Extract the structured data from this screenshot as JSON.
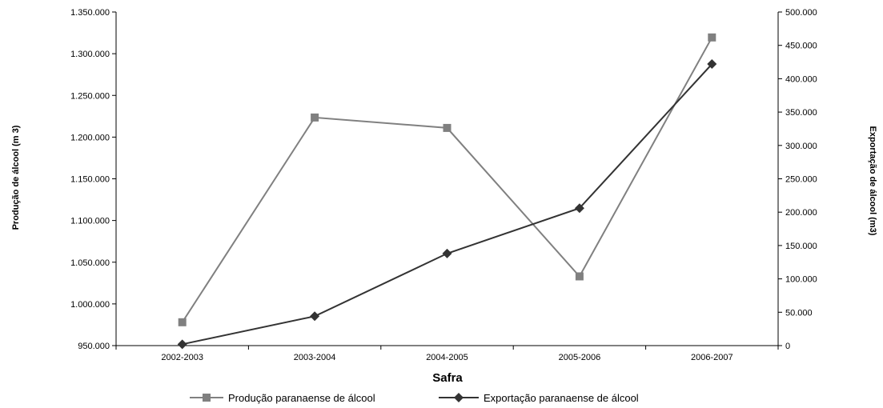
{
  "chart_data": {
    "type": "line",
    "categories": [
      "2002-2003",
      "2003-2004",
      "2004-2005",
      "2005-2006",
      "2006-2007"
    ],
    "xlabel": "Safra",
    "ylabel_left": "Produção de álcool (m 3)",
    "ylabel_right": "Exportação de álcool (m3)",
    "y_left": {
      "min": 950000,
      "max": 1350000,
      "step": 50000,
      "ticks": [
        "950.000",
        "1.000.000",
        "1.050.000",
        "1.100.000",
        "1.150.000",
        "1.200.000",
        "1.250.000",
        "1.300.000",
        "1.350.000"
      ]
    },
    "y_right": {
      "min": 0,
      "max": 500000,
      "step": 50000,
      "ticks": [
        "0",
        "50.000",
        "100.000",
        "150.000",
        "200.000",
        "250.000",
        "300.000",
        "350.000",
        "400.000",
        "450.000",
        "500.000"
      ]
    },
    "series": [
      {
        "name": "Produção paranaense de álcool",
        "axis": "left",
        "marker": "square",
        "color": "#808080",
        "values": [
          978000,
          1223500,
          1211000,
          1033000,
          1319500
        ]
      },
      {
        "name": "Exportação paranaense de álcool",
        "axis": "right",
        "marker": "diamond",
        "color": "#333333",
        "values": [
          2000,
          44000,
          138000,
          206000,
          422000
        ]
      }
    ],
    "legend_position": "bottom",
    "grid": false
  }
}
